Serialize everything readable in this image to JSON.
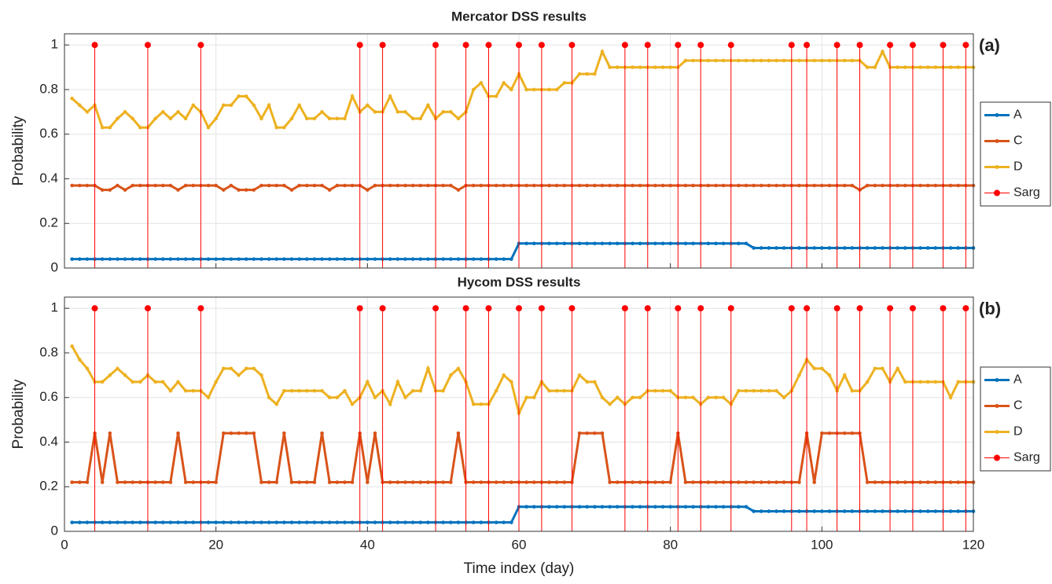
{
  "chart_data": [
    {
      "type": "line",
      "title": "Mercator DSS results",
      "annotation": "(a)",
      "ylabel": "Probability",
      "x": [
        1,
        2,
        3,
        4,
        5,
        6,
        7,
        8,
        9,
        10,
        11,
        12,
        13,
        14,
        15,
        16,
        17,
        18,
        19,
        20,
        21,
        22,
        23,
        24,
        25,
        26,
        27,
        28,
        29,
        30,
        31,
        32,
        33,
        34,
        35,
        36,
        37,
        38,
        39,
        40,
        41,
        42,
        43,
        44,
        45,
        46,
        47,
        48,
        49,
        50,
        51,
        52,
        53,
        54,
        55,
        56,
        57,
        58,
        59,
        60,
        61,
        62,
        63,
        64,
        65,
        66,
        67,
        68,
        69,
        70,
        71,
        72,
        73,
        74,
        75,
        76,
        77,
        78,
        79,
        80,
        81,
        82,
        83,
        84,
        85,
        86,
        87,
        88,
        89,
        90,
        91,
        92,
        93,
        94,
        95,
        96,
        97,
        98,
        99,
        100,
        101,
        102,
        103,
        104,
        105,
        106,
        107,
        108,
        109,
        110,
        111,
        112,
        113,
        114,
        115,
        116,
        117,
        118,
        119,
        120
      ],
      "xlim": [
        0,
        120
      ],
      "xticks": [
        0,
        20,
        40,
        60,
        80,
        100,
        120
      ],
      "xtick_labels": false,
      "ylim": [
        0,
        1.05
      ],
      "yticks": [
        0,
        0.2,
        0.4,
        0.6,
        0.8,
        1
      ],
      "grid": true,
      "legend": "right",
      "series": [
        {
          "name": "A",
          "color": "#0072BD",
          "values": [
            0.04,
            0.04,
            0.04,
            0.04,
            0.04,
            0.04,
            0.04,
            0.04,
            0.04,
            0.04,
            0.04,
            0.04,
            0.04,
            0.04,
            0.04,
            0.04,
            0.04,
            0.04,
            0.04,
            0.04,
            0.04,
            0.04,
            0.04,
            0.04,
            0.04,
            0.04,
            0.04,
            0.04,
            0.04,
            0.04,
            0.04,
            0.04,
            0.04,
            0.04,
            0.04,
            0.04,
            0.04,
            0.04,
            0.04,
            0.04,
            0.04,
            0.04,
            0.04,
            0.04,
            0.04,
            0.04,
            0.04,
            0.04,
            0.04,
            0.04,
            0.04,
            0.04,
            0.04,
            0.04,
            0.04,
            0.04,
            0.04,
            0.04,
            0.04,
            0.11,
            0.11,
            0.11,
            0.11,
            0.11,
            0.11,
            0.11,
            0.11,
            0.11,
            0.11,
            0.11,
            0.11,
            0.11,
            0.11,
            0.11,
            0.11,
            0.11,
            0.11,
            0.11,
            0.11,
            0.11,
            0.11,
            0.11,
            0.11,
            0.11,
            0.11,
            0.11,
            0.11,
            0.11,
            0.11,
            0.11,
            0.09,
            0.09,
            0.09,
            0.09,
            0.09,
            0.09,
            0.09,
            0.09,
            0.09,
            0.09,
            0.09,
            0.09,
            0.09,
            0.09,
            0.09,
            0.09,
            0.09,
            0.09,
            0.09,
            0.09,
            0.09,
            0.09,
            0.09,
            0.09,
            0.09,
            0.09,
            0.09,
            0.09,
            0.09,
            0.09
          ]
        },
        {
          "name": "C",
          "color": "#D95319",
          "values": [
            0.37,
            0.37,
            0.37,
            0.37,
            0.35,
            0.35,
            0.37,
            0.35,
            0.37,
            0.37,
            0.37,
            0.37,
            0.37,
            0.37,
            0.35,
            0.37,
            0.37,
            0.37,
            0.37,
            0.37,
            0.35,
            0.37,
            0.35,
            0.35,
            0.35,
            0.37,
            0.37,
            0.37,
            0.37,
            0.35,
            0.37,
            0.37,
            0.37,
            0.37,
            0.35,
            0.37,
            0.37,
            0.37,
            0.37,
            0.35,
            0.37,
            0.37,
            0.37,
            0.37,
            0.37,
            0.37,
            0.37,
            0.37,
            0.37,
            0.37,
            0.37,
            0.35,
            0.37,
            0.37,
            0.37,
            0.37,
            0.37,
            0.37,
            0.37,
            0.37,
            0.37,
            0.37,
            0.37,
            0.37,
            0.37,
            0.37,
            0.37,
            0.37,
            0.37,
            0.37,
            0.37,
            0.37,
            0.37,
            0.37,
            0.37,
            0.37,
            0.37,
            0.37,
            0.37,
            0.37,
            0.37,
            0.37,
            0.37,
            0.37,
            0.37,
            0.37,
            0.37,
            0.37,
            0.37,
            0.37,
            0.37,
            0.37,
            0.37,
            0.37,
            0.37,
            0.37,
            0.37,
            0.37,
            0.37,
            0.37,
            0.37,
            0.37,
            0.37,
            0.37,
            0.35,
            0.37,
            0.37,
            0.37,
            0.37,
            0.37,
            0.37,
            0.37,
            0.37,
            0.37,
            0.37,
            0.37,
            0.37,
            0.37,
            0.37,
            0.37
          ]
        },
        {
          "name": "D",
          "color": "#EDB120",
          "values": [
            0.76,
            0.73,
            0.7,
            0.73,
            0.63,
            0.63,
            0.67,
            0.7,
            0.67,
            0.63,
            0.63,
            0.67,
            0.7,
            0.67,
            0.7,
            0.67,
            0.73,
            0.7,
            0.63,
            0.67,
            0.73,
            0.73,
            0.77,
            0.77,
            0.73,
            0.67,
            0.73,
            0.63,
            0.63,
            0.67,
            0.73,
            0.67,
            0.67,
            0.7,
            0.67,
            0.67,
            0.67,
            0.77,
            0.7,
            0.73,
            0.7,
            0.7,
            0.77,
            0.7,
            0.7,
            0.67,
            0.67,
            0.73,
            0.67,
            0.7,
            0.7,
            0.67,
            0.7,
            0.8,
            0.83,
            0.77,
            0.77,
            0.83,
            0.8,
            0.87,
            0.8,
            0.8,
            0.8,
            0.8,
            0.8,
            0.83,
            0.83,
            0.87,
            0.87,
            0.87,
            0.97,
            0.9,
            0.9,
            0.9,
            0.9,
            0.9,
            0.9,
            0.9,
            0.9,
            0.9,
            0.9,
            0.93,
            0.93,
            0.93,
            0.93,
            0.93,
            0.93,
            0.93,
            0.93,
            0.93,
            0.93,
            0.93,
            0.93,
            0.93,
            0.93,
            0.93,
            0.93,
            0.93,
            0.93,
            0.93,
            0.93,
            0.93,
            0.93,
            0.93,
            0.93,
            0.9,
            0.9,
            0.97,
            0.9,
            0.9,
            0.9,
            0.9,
            0.9,
            0.9,
            0.9,
            0.9,
            0.9,
            0.9,
            0.9,
            0.9
          ]
        },
        {
          "name": "Sarg",
          "color": "#FF0000",
          "stem": true,
          "x": [
            4,
            11,
            18,
            39,
            42,
            49,
            53,
            56,
            60,
            63,
            67,
            74,
            77,
            81,
            84,
            88,
            96,
            98,
            102,
            105,
            109,
            112,
            116,
            119
          ],
          "values": [
            1,
            1,
            1,
            1,
            1,
            1,
            1,
            1,
            1,
            1,
            1,
            1,
            1,
            1,
            1,
            1,
            1,
            1,
            1,
            1,
            1,
            1,
            1,
            1
          ]
        }
      ]
    },
    {
      "type": "line",
      "title": "Hycom DSS results",
      "annotation": "(b)",
      "ylabel": "Probability",
      "xlabel": "Time index (day)",
      "x": [
        1,
        2,
        3,
        4,
        5,
        6,
        7,
        8,
        9,
        10,
        11,
        12,
        13,
        14,
        15,
        16,
        17,
        18,
        19,
        20,
        21,
        22,
        23,
        24,
        25,
        26,
        27,
        28,
        29,
        30,
        31,
        32,
        33,
        34,
        35,
        36,
        37,
        38,
        39,
        40,
        41,
        42,
        43,
        44,
        45,
        46,
        47,
        48,
        49,
        50,
        51,
        52,
        53,
        54,
        55,
        56,
        57,
        58,
        59,
        60,
        61,
        62,
        63,
        64,
        65,
        66,
        67,
        68,
        69,
        70,
        71,
        72,
        73,
        74,
        75,
        76,
        77,
        78,
        79,
        80,
        81,
        82,
        83,
        84,
        85,
        86,
        87,
        88,
        89,
        90,
        91,
        92,
        93,
        94,
        95,
        96,
        97,
        98,
        99,
        100,
        101,
        102,
        103,
        104,
        105,
        106,
        107,
        108,
        109,
        110,
        111,
        112,
        113,
        114,
        115,
        116,
        117,
        118,
        119,
        120
      ],
      "xlim": [
        0,
        120
      ],
      "xticks": [
        0,
        20,
        40,
        60,
        80,
        100,
        120
      ],
      "xtick_labels": true,
      "ylim": [
        0,
        1.05
      ],
      "yticks": [
        0,
        0.2,
        0.4,
        0.6,
        0.8,
        1
      ],
      "grid": true,
      "legend": "right",
      "series": [
        {
          "name": "A",
          "color": "#0072BD",
          "values": [
            0.04,
            0.04,
            0.04,
            0.04,
            0.04,
            0.04,
            0.04,
            0.04,
            0.04,
            0.04,
            0.04,
            0.04,
            0.04,
            0.04,
            0.04,
            0.04,
            0.04,
            0.04,
            0.04,
            0.04,
            0.04,
            0.04,
            0.04,
            0.04,
            0.04,
            0.04,
            0.04,
            0.04,
            0.04,
            0.04,
            0.04,
            0.04,
            0.04,
            0.04,
            0.04,
            0.04,
            0.04,
            0.04,
            0.04,
            0.04,
            0.04,
            0.04,
            0.04,
            0.04,
            0.04,
            0.04,
            0.04,
            0.04,
            0.04,
            0.04,
            0.04,
            0.04,
            0.04,
            0.04,
            0.04,
            0.04,
            0.04,
            0.04,
            0.04,
            0.11,
            0.11,
            0.11,
            0.11,
            0.11,
            0.11,
            0.11,
            0.11,
            0.11,
            0.11,
            0.11,
            0.11,
            0.11,
            0.11,
            0.11,
            0.11,
            0.11,
            0.11,
            0.11,
            0.11,
            0.11,
            0.11,
            0.11,
            0.11,
            0.11,
            0.11,
            0.11,
            0.11,
            0.11,
            0.11,
            0.11,
            0.09,
            0.09,
            0.09,
            0.09,
            0.09,
            0.09,
            0.09,
            0.09,
            0.09,
            0.09,
            0.09,
            0.09,
            0.09,
            0.09,
            0.09,
            0.09,
            0.09,
            0.09,
            0.09,
            0.09,
            0.09,
            0.09,
            0.09,
            0.09,
            0.09,
            0.09,
            0.09,
            0.09,
            0.09,
            0.09
          ]
        },
        {
          "name": "C",
          "color": "#D95319",
          "values": [
            0.22,
            0.22,
            0.22,
            0.44,
            0.22,
            0.44,
            0.22,
            0.22,
            0.22,
            0.22,
            0.22,
            0.22,
            0.22,
            0.22,
            0.44,
            0.22,
            0.22,
            0.22,
            0.22,
            0.22,
            0.44,
            0.44,
            0.44,
            0.44,
            0.44,
            0.22,
            0.22,
            0.22,
            0.44,
            0.22,
            0.22,
            0.22,
            0.22,
            0.44,
            0.22,
            0.22,
            0.22,
            0.22,
            0.44,
            0.22,
            0.44,
            0.22,
            0.22,
            0.22,
            0.22,
            0.22,
            0.22,
            0.22,
            0.22,
            0.22,
            0.22,
            0.44,
            0.22,
            0.22,
            0.22,
            0.22,
            0.22,
            0.22,
            0.22,
            0.22,
            0.22,
            0.22,
            0.22,
            0.22,
            0.22,
            0.22,
            0.22,
            0.44,
            0.44,
            0.44,
            0.44,
            0.22,
            0.22,
            0.22,
            0.22,
            0.22,
            0.22,
            0.22,
            0.22,
            0.22,
            0.44,
            0.22,
            0.22,
            0.22,
            0.22,
            0.22,
            0.22,
            0.22,
            0.22,
            0.22,
            0.22,
            0.22,
            0.22,
            0.22,
            0.22,
            0.22,
            0.22,
            0.44,
            0.22,
            0.44,
            0.44,
            0.44,
            0.44,
            0.44,
            0.44,
            0.22,
            0.22,
            0.22,
            0.22,
            0.22,
            0.22,
            0.22,
            0.22,
            0.22,
            0.22,
            0.22,
            0.22,
            0.22,
            0.22,
            0.22
          ]
        },
        {
          "name": "D",
          "color": "#EDB120",
          "values": [
            0.83,
            0.77,
            0.73,
            0.67,
            0.67,
            0.7,
            0.73,
            0.7,
            0.67,
            0.67,
            0.7,
            0.67,
            0.67,
            0.63,
            0.67,
            0.63,
            0.63,
            0.63,
            0.6,
            0.67,
            0.73,
            0.73,
            0.7,
            0.73,
            0.73,
            0.7,
            0.6,
            0.57,
            0.63,
            0.63,
            0.63,
            0.63,
            0.63,
            0.63,
            0.6,
            0.6,
            0.63,
            0.57,
            0.6,
            0.67,
            0.6,
            0.63,
            0.57,
            0.67,
            0.6,
            0.63,
            0.63,
            0.73,
            0.63,
            0.63,
            0.7,
            0.73,
            0.67,
            0.57,
            0.57,
            0.57,
            0.63,
            0.7,
            0.67,
            0.53,
            0.6,
            0.6,
            0.67,
            0.63,
            0.63,
            0.63,
            0.63,
            0.7,
            0.67,
            0.67,
            0.6,
            0.57,
            0.6,
            0.57,
            0.6,
            0.6,
            0.63,
            0.63,
            0.63,
            0.63,
            0.6,
            0.6,
            0.6,
            0.57,
            0.6,
            0.6,
            0.6,
            0.57,
            0.63,
            0.63,
            0.63,
            0.63,
            0.63,
            0.63,
            0.6,
            0.63,
            0.7,
            0.77,
            0.73,
            0.73,
            0.7,
            0.63,
            0.7,
            0.63,
            0.63,
            0.67,
            0.73,
            0.73,
            0.67,
            0.73,
            0.67,
            0.67,
            0.67,
            0.67,
            0.67,
            0.67,
            0.6,
            0.67,
            0.67,
            0.67
          ]
        },
        {
          "name": "Sarg",
          "color": "#FF0000",
          "stem": true,
          "x": [
            4,
            11,
            18,
            39,
            42,
            49,
            53,
            56,
            60,
            63,
            67,
            74,
            77,
            81,
            84,
            88,
            96,
            98,
            102,
            105,
            109,
            112,
            116,
            119
          ],
          "values": [
            1,
            1,
            1,
            1,
            1,
            1,
            1,
            1,
            1,
            1,
            1,
            1,
            1,
            1,
            1,
            1,
            1,
            1,
            1,
            1,
            1,
            1,
            1,
            1
          ]
        }
      ]
    }
  ]
}
